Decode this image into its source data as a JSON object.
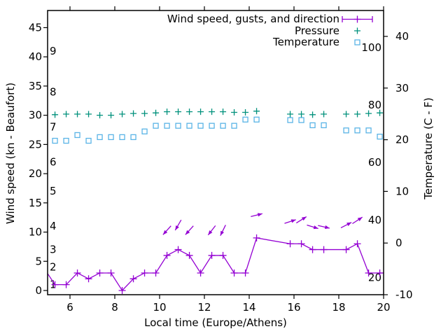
{
  "chart_data": {
    "type": "line",
    "title": "",
    "xlabel": "Local time (Europe/Athens)",
    "ylabel_left": "Wind speed (kn - Beaufort)",
    "ylabel_right": "Temperature (C - F)",
    "background": "#ffffff",
    "border_color": "#000000",
    "grid": false,
    "legend_position": "top-right-inside",
    "x_range": [
      5,
      20
    ],
    "x_ticks": [
      6,
      8,
      10,
      12,
      14,
      16,
      18,
      20
    ],
    "left_axis": {
      "label": "Wind speed (kn - Beaufort)",
      "range": [
        0,
        48
      ],
      "ticks": [
        0,
        5,
        10,
        15,
        20,
        25,
        30,
        35,
        40,
        45
      ]
    },
    "right_axis": {
      "label": "Temperature (C - F)",
      "range": [
        -10,
        45
      ],
      "ticks": [
        -10,
        0,
        10,
        20,
        30,
        40
      ]
    },
    "beaufort_inner_labels": [
      {
        "text": "1",
        "kn": 1
      },
      {
        "text": "2",
        "kn": 4
      },
      {
        "text": "3",
        "kn": 7
      },
      {
        "text": "4",
        "kn": 11
      },
      {
        "text": "5",
        "kn": 17
      },
      {
        "text": "6",
        "kn": 22
      },
      {
        "text": "7",
        "kn": 28
      },
      {
        "text": "8",
        "kn": 34
      },
      {
        "text": "9",
        "kn": 41
      }
    ],
    "fahrenheit_inner_labels": [
      {
        "text": "20",
        "c": -6.7
      },
      {
        "text": "40",
        "c": 4.4
      },
      {
        "text": "60",
        "c": 15.6
      },
      {
        "text": "80",
        "c": 26.7
      },
      {
        "text": "100",
        "c": 37.8
      }
    ],
    "x": [
      5.33,
      5.83,
      6.33,
      6.83,
      7.33,
      7.83,
      8.33,
      8.83,
      9.33,
      9.83,
      10.33,
      10.83,
      11.33,
      11.83,
      12.33,
      12.83,
      13.33,
      13.83,
      14.33,
      15.83,
      16.33,
      16.83,
      17.33,
      18.33,
      18.83,
      19.33,
      19.83
    ],
    "series": [
      {
        "name": "Wind speed, gusts, and direction",
        "color": "#9400d3",
        "style": "line-with-plus-markers",
        "axis": "left",
        "unit": "kn",
        "values": [
          1,
          1,
          3,
          2,
          3,
          3,
          0,
          2,
          3,
          3,
          6,
          7,
          6,
          3,
          6,
          6,
          3,
          3,
          9,
          8,
          8,
          7,
          7,
          7,
          8,
          3,
          3
        ],
        "lead_in": {
          "t": 5.0,
          "value": 2.9
        },
        "lead_out": {
          "t": 20.0,
          "value": 3
        }
      },
      {
        "name": "Pressure",
        "color": "#00917c",
        "style": "plus-markers",
        "axis": "left",
        "values": [
          30.1,
          30.2,
          30.2,
          30.2,
          30.0,
          30.0,
          30.2,
          30.3,
          30.3,
          30.4,
          30.6,
          30.6,
          30.6,
          30.6,
          30.6,
          30.6,
          30.5,
          30.5,
          30.7,
          30.2,
          30.2,
          30.1,
          30.2,
          30.2,
          30.2,
          30.3,
          30.4
        ]
      },
      {
        "name": "Temperature",
        "color": "#5ab4e6",
        "style": "open-square-markers",
        "axis": "right",
        "unit": "C",
        "values": [
          19.8,
          19.8,
          20.9,
          19.8,
          20.5,
          20.5,
          20.5,
          20.5,
          21.6,
          22.7,
          22.7,
          22.7,
          22.7,
          22.7,
          22.7,
          22.7,
          22.7,
          23.9,
          23.9,
          23.8,
          23.8,
          22.8,
          22.8,
          21.8,
          21.8,
          21.8,
          20.6
        ]
      }
    ],
    "wind_direction_arrows": {
      "color": "#9400d3",
      "points": [
        {
          "t": 10.33,
          "kn": 10.3,
          "angle_deg": 228
        },
        {
          "t": 10.83,
          "kn": 11.2,
          "angle_deg": 240
        },
        {
          "t": 11.33,
          "kn": 10.3,
          "angle_deg": 228
        },
        {
          "t": 12.33,
          "kn": 10.3,
          "angle_deg": 232
        },
        {
          "t": 12.83,
          "kn": 10.3,
          "angle_deg": 244
        },
        {
          "t": 14.33,
          "kn": 12.9,
          "angle_deg": 14
        },
        {
          "t": 15.83,
          "kn": 11.8,
          "angle_deg": 18
        },
        {
          "t": 16.33,
          "kn": 12.1,
          "angle_deg": 32
        },
        {
          "t": 16.83,
          "kn": 10.9,
          "angle_deg": -17
        },
        {
          "t": 17.33,
          "kn": 10.9,
          "angle_deg": -13
        },
        {
          "t": 18.33,
          "kn": 11.2,
          "angle_deg": 27
        },
        {
          "t": 18.83,
          "kn": 12.0,
          "angle_deg": 33
        }
      ]
    },
    "legend": {
      "items": [
        {
          "label": "Wind speed, gusts, and direction",
          "marker": "errorbar-with-plus",
          "color": "#9400d3"
        },
        {
          "label": "Pressure",
          "marker": "plus",
          "color": "#00917c"
        },
        {
          "label": "Temperature",
          "marker": "open-square",
          "color": "#5ab4e6"
        }
      ]
    }
  }
}
